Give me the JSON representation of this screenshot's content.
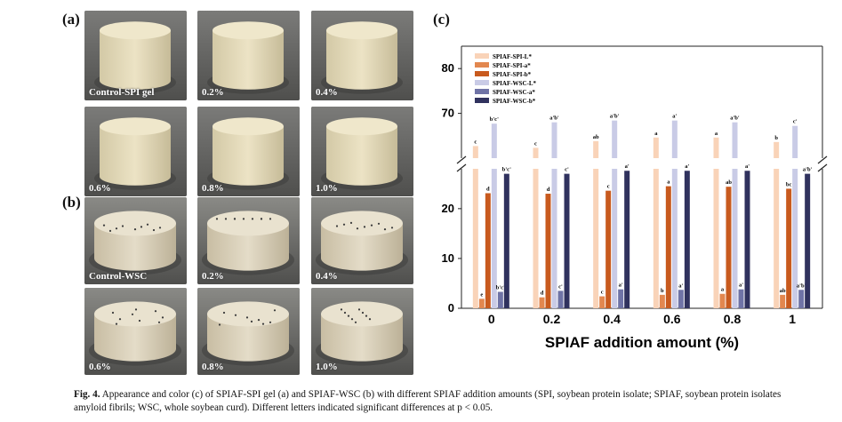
{
  "panels": {
    "a": {
      "letter": "(a)",
      "tiles": [
        {
          "label": "Control-SPI gel"
        },
        {
          "label": "0.2%"
        },
        {
          "label": "0.4%"
        },
        {
          "label": "0.6%"
        },
        {
          "label": "0.8%"
        },
        {
          "label": "1.0%"
        }
      ]
    },
    "b": {
      "letter": "(b)",
      "tiles": [
        {
          "label": "Control-WSC"
        },
        {
          "label": "0.2%"
        },
        {
          "label": "0.4%"
        },
        {
          "label": "0.6%"
        },
        {
          "label": "0.8%"
        },
        {
          "label": "1.0%"
        }
      ]
    },
    "c": {
      "letter": "(c)"
    }
  },
  "chart_data": {
    "type": "bar",
    "xlabel": "SPIAF addition amount (%)",
    "ylabel": "",
    "categories": [
      "0",
      "0.2",
      "0.4",
      "0.6",
      "0.8",
      "1"
    ],
    "y_axis_broken": true,
    "ylim_lower": [
      0,
      28
    ],
    "ylim_upper": [
      60,
      85
    ],
    "yticks_lower": [
      0,
      10,
      20
    ],
    "yticks_upper": [
      70,
      80
    ],
    "legend_position": "top-left",
    "series": [
      {
        "name": "SPIAF-SPI-L*",
        "color": "#f9d3b8",
        "values": [
          62.7,
          62.3,
          63.8,
          64.6,
          64.6,
          63.6
        ],
        "labels": [
          "c",
          "c",
          "ab",
          "a",
          "a",
          "b"
        ]
      },
      {
        "name": "SPIAF-SPI-a*",
        "color": "#e2874f",
        "values": [
          1.9,
          2.2,
          2.4,
          2.7,
          2.9,
          2.7
        ],
        "labels": [
          "e",
          "d",
          "c",
          "b",
          "a",
          "ab"
        ]
      },
      {
        "name": "SPIAF-SPI-b*",
        "color": "#c85a1e",
        "values": [
          23.1,
          23.0,
          23.6,
          24.5,
          24.4,
          24.0
        ],
        "labels": [
          "d",
          "d",
          "c",
          "a",
          "ab",
          "bc"
        ]
      },
      {
        "name": "SPIAF-WSC-L*",
        "color": "#c9cbe6",
        "values": [
          67.7,
          68.0,
          68.4,
          68.4,
          68.0,
          67.2
        ],
        "labels": [
          "b'c'",
          "a'b'",
          "a'b'",
          "a'",
          "a'b'",
          "c'"
        ]
      },
      {
        "name": "SPIAF-WSC-a*",
        "color": "#6f73a6",
        "values": [
          3.3,
          3.5,
          3.8,
          3.7,
          3.8,
          3.7
        ],
        "labels": [
          "b'c'",
          "c'",
          "a'",
          "a'",
          "a'",
          "a'b'"
        ]
      },
      {
        "name": "SPIAF-WSC-b*",
        "color": "#30325e",
        "values": [
          27.0,
          27.0,
          27.6,
          27.6,
          27.6,
          27.0
        ],
        "labels": [
          "b'c'",
          "c'",
          "a'",
          "a'",
          "a'",
          "a'b'"
        ]
      }
    ]
  },
  "caption": {
    "label": "Fig. 4.",
    "text": "Appearance and color (c) of SPIAF-SPI gel (a) and SPIAF-WSC (b) with different SPIAF addition amounts (SPI, soybean protein isolate; SPIAF, soybean protein isolates amyloid fibrils; WSC, whole soybean curd). Different letters indicated significant differences at p < 0.05."
  }
}
